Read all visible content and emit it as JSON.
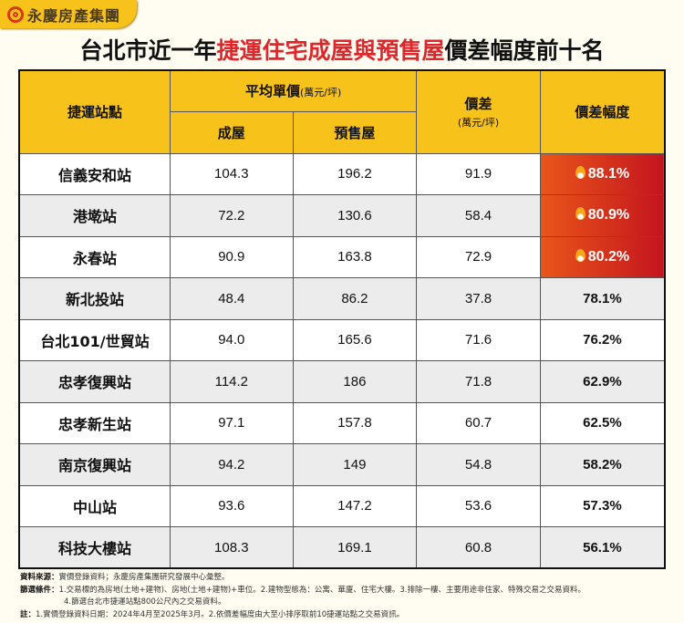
{
  "logo": {
    "text": "永慶房產集團"
  },
  "title": {
    "prefix": "台北市近一年",
    "highlight": "捷運住宅成屋與預售屋",
    "suffix": "價差幅度前十名"
  },
  "header": {
    "station": "捷運站點",
    "avg_price": "平均單價",
    "avg_unit": "(萬元/坪)",
    "existing": "成屋",
    "presale": "預售屋",
    "diff": "價差",
    "diff_unit": "(萬元/坪)",
    "pct": "價差幅度"
  },
  "rows": [
    {
      "station": "信義安和站",
      "existing": "104.3",
      "presale": "196.2",
      "diff": "91.9",
      "pct": "88.1%",
      "hot": true
    },
    {
      "station": "港墘站",
      "existing": "72.2",
      "presale": "130.6",
      "diff": "58.4",
      "pct": "80.9%",
      "hot": true
    },
    {
      "station": "永春站",
      "existing": "90.9",
      "presale": "163.8",
      "diff": "72.9",
      "pct": "80.2%",
      "hot": true
    },
    {
      "station": "新北投站",
      "existing": "48.4",
      "presale": "86.2",
      "diff": "37.8",
      "pct": "78.1%",
      "hot": false
    },
    {
      "station": "台北101/世貿站",
      "existing": "94.0",
      "presale": "165.6",
      "diff": "71.6",
      "pct": "76.2%",
      "hot": false
    },
    {
      "station": "忠孝復興站",
      "existing": "114.2",
      "presale": "186",
      "diff": "71.8",
      "pct": "62.9%",
      "hot": false
    },
    {
      "station": "忠孝新生站",
      "existing": "97.1",
      "presale": "157.8",
      "diff": "60.7",
      "pct": "62.5%",
      "hot": false
    },
    {
      "station": "南京復興站",
      "existing": "94.2",
      "presale": "149",
      "diff": "54.8",
      "pct": "58.2%",
      "hot": false
    },
    {
      "station": "中山站",
      "existing": "93.6",
      "presale": "147.2",
      "diff": "53.6",
      "pct": "57.3%",
      "hot": false
    },
    {
      "station": "科技大樓站",
      "existing": "108.3",
      "presale": "169.1",
      "diff": "60.8",
      "pct": "56.1%",
      "hot": false
    }
  ],
  "notes": {
    "source_label": "資料來源：",
    "source": "實價登錄資料；永慶房產集團研究發展中心彙整。",
    "filter_label": "篩選條件：",
    "filter1": "1.交易標的為房地(土地+建物)、房地(土地+建物)+車位。2.建物型態為：公寓、華廈、住宅大樓。3.排除一樓、主要用途非住家、特殊交易之交易資料。",
    "filter2": "4.篩選台北市捷運站點800公尺內之交易資料。",
    "note_label": "註：",
    "note": "1.實價登錄資料日期：2024年4月至2025年3月。2.依價差幅度由大至小排序取前10捷運站點之交易資訊。"
  },
  "colors": {
    "header": "#f7c21a",
    "highlight": "#e0262b",
    "hot_start": "#e9561a",
    "hot_end": "#c4141e"
  }
}
